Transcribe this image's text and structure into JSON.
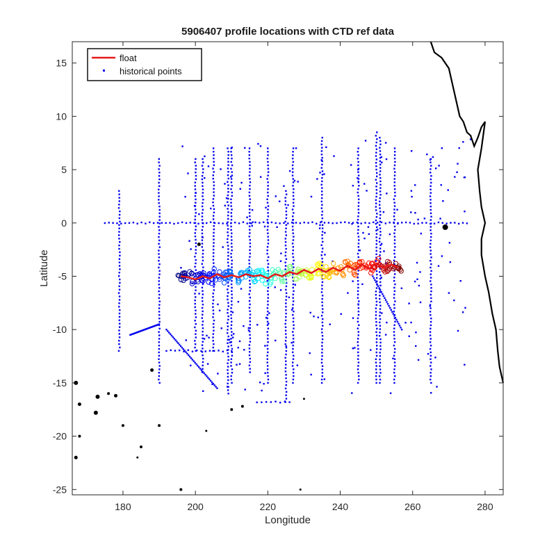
{
  "chart_data": {
    "type": "scatter",
    "title": "5906407 profile locations with CTD ref data",
    "xlabel": "Longitude",
    "ylabel": "Latitude",
    "xlim": [
      166,
      285
    ],
    "ylim": [
      -25.5,
      17
    ],
    "xticks": [
      "180",
      "200",
      "220",
      "240",
      "260",
      "280"
    ],
    "yticks": [
      "15",
      "10",
      "5",
      "0",
      "-5",
      "-10",
      "-15",
      "-20",
      "-25"
    ],
    "grid": false,
    "legend": {
      "position": "top-left",
      "entries": [
        {
          "label": "float",
          "color": "#e41a1a",
          "style": "line"
        },
        {
          "label": "historical points",
          "color": "#0000ee",
          "style": "marker"
        }
      ]
    },
    "series": [
      {
        "name": "float",
        "color": "#e41a1a",
        "x": [
          196,
          198,
          200,
          202,
          204,
          206,
          208,
          210,
          212,
          214,
          216,
          218,
          220,
          222,
          224,
          226,
          228,
          230,
          232,
          234,
          236,
          238,
          240,
          242,
          244,
          246,
          248,
          250,
          252,
          254,
          256
        ],
        "y": [
          -5.0,
          -5.1,
          -5.3,
          -5.0,
          -5.2,
          -4.8,
          -5.1,
          -4.9,
          -5.1,
          -4.8,
          -5.0,
          -4.9,
          -5.2,
          -4.8,
          -5.0,
          -4.6,
          -4.8,
          -4.4,
          -4.7,
          -4.3,
          -4.6,
          -4.2,
          -4.5,
          -4.0,
          -4.4,
          -3.9,
          -4.3,
          -3.8,
          -4.2,
          -3.9,
          -4.2
        ]
      },
      {
        "name": "historical points",
        "color": "#0000ee",
        "lines_vertical": [
          {
            "x": 179,
            "y": [
              -12,
              3
            ]
          },
          {
            "x": 190,
            "y": [
              -15,
              6
            ]
          },
          {
            "x": 200,
            "y": [
              -12,
              6
            ]
          },
          {
            "x": 202,
            "y": [
              -14,
              6
            ]
          },
          {
            "x": 205,
            "y": [
              -12,
              7
            ]
          },
          {
            "x": 209,
            "y": [
              -16,
              7
            ]
          },
          {
            "x": 210,
            "y": [
              -15,
              7
            ]
          },
          {
            "x": 215,
            "y": [
              -14,
              7
            ]
          },
          {
            "x": 220,
            "y": [
              -15,
              7
            ]
          },
          {
            "x": 225,
            "y": [
              -16.8,
              3
            ]
          },
          {
            "x": 227,
            "y": [
              -15,
              7
            ]
          },
          {
            "x": 235,
            "y": [
              -15,
              8
            ]
          },
          {
            "x": 245,
            "y": [
              -15,
              7
            ]
          },
          {
            "x": 250,
            "y": [
              -15,
              8.5
            ]
          },
          {
            "x": 251,
            "y": [
              -15,
              8
            ]
          },
          {
            "x": 255,
            "y": [
              -15,
              7
            ]
          },
          {
            "x": 265,
            "y": [
              -15,
              6
            ]
          }
        ],
        "lines_horizontal": [
          {
            "y": 0,
            "x": [
              175,
              275
            ]
          },
          {
            "y": -16.8,
            "x": [
              217,
              226
            ]
          },
          {
            "y": -12,
            "x": [
              192,
              210
            ]
          }
        ]
      }
    ]
  },
  "colors": {
    "float_track": "#e41a1a",
    "historical": "#0000ee",
    "coast": "#000000"
  }
}
